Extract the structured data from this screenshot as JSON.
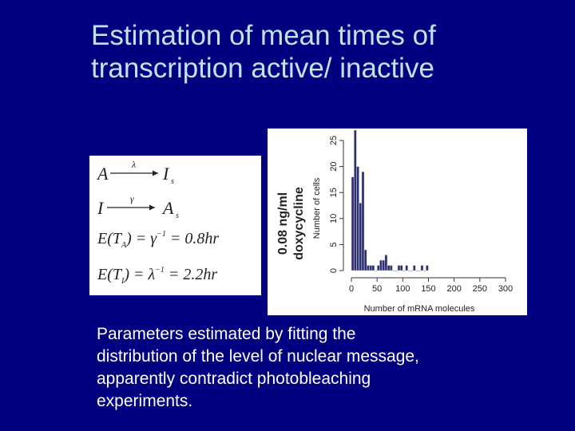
{
  "slide": {
    "title_lines": [
      "Estimation of mean times of",
      "transcription active/ inactive"
    ],
    "body_lines": [
      "Parameters estimated by fitting the",
      "distribution of the level of nuclear message,",
      "apparently contradict photobleaching",
      "experiments."
    ],
    "colors": {
      "background": "#000080",
      "title": "#bfe3e9",
      "body": "#ffffff",
      "bars": "#2e3170"
    }
  },
  "equations": {
    "line1": {
      "from": "A",
      "rate": "λ",
      "to": "I",
      "to_sub": "s"
    },
    "line2": {
      "from": "I",
      "rate": "γ",
      "to": "A",
      "to_sub": "s"
    },
    "line3": {
      "lhs": "E(T",
      "lhs_sub": "A",
      "mid": ") = γ",
      "sup": "−1",
      "rhs": " = 0.8hr"
    },
    "line4": {
      "lhs": "E(T",
      "lhs_sub": "I",
      "mid": ") = λ",
      "sup": "−1",
      "rhs": " = 2.2hr"
    }
  },
  "chart_data": {
    "type": "bar",
    "side_label_lines": [
      "0.08 ng/ml",
      "doxycycline"
    ],
    "xlabel": "Number of mRNA molecules",
    "ylabel": "Number of cells",
    "xlim": [
      0,
      300
    ],
    "ylim": [
      0,
      25
    ],
    "xticks": [
      0,
      50,
      100,
      150,
      200,
      250,
      300
    ],
    "yticks": [
      0,
      5,
      10,
      15,
      20,
      25
    ],
    "bin_width": 5,
    "bin_starts": [
      0,
      5,
      10,
      15,
      20,
      25,
      30,
      35,
      40,
      45,
      50,
      55,
      60,
      65,
      70,
      75,
      80,
      85,
      90,
      95,
      100,
      105,
      110,
      115,
      120,
      125,
      130,
      135,
      140,
      145
    ],
    "values": [
      18,
      27,
      20,
      13,
      19,
      4,
      1,
      1,
      1,
      0,
      1,
      2,
      2,
      3,
      1,
      1,
      0,
      0,
      1,
      1,
      0,
      1,
      0,
      0,
      1,
      0,
      0,
      1,
      0,
      1
    ]
  }
}
